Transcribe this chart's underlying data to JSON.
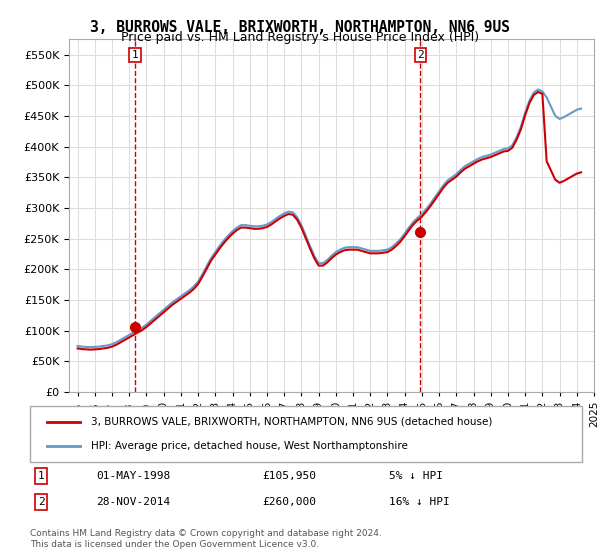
{
  "title": "3, BURROWS VALE, BRIXWORTH, NORTHAMPTON, NN6 9US",
  "subtitle": "Price paid vs. HM Land Registry's House Price Index (HPI)",
  "legend_line1": "3, BURROWS VALE, BRIXWORTH, NORTHAMPTON, NN6 9US (detached house)",
  "legend_line2": "HPI: Average price, detached house, West Northamptonshire",
  "footer": "Contains HM Land Registry data © Crown copyright and database right 2024.\nThis data is licensed under the Open Government Licence v3.0.",
  "sale1_label": "1",
  "sale1_date": "01-MAY-1998",
  "sale1_price": "£105,950",
  "sale1_hpi": "5% ↓ HPI",
  "sale2_label": "2",
  "sale2_date": "28-NOV-2014",
  "sale2_price": "£260,000",
  "sale2_hpi": "16% ↓ HPI",
  "red_color": "#cc0000",
  "blue_color": "#6699cc",
  "grid_color": "#dddddd",
  "background_color": "#ffffff",
  "ylim": [
    0,
    575000
  ],
  "yticks": [
    0,
    50000,
    100000,
    150000,
    200000,
    250000,
    300000,
    350000,
    400000,
    450000,
    500000,
    550000
  ],
  "hpi_data": {
    "years": [
      1995.0,
      1995.25,
      1995.5,
      1995.75,
      1996.0,
      1996.25,
      1996.5,
      1996.75,
      1997.0,
      1997.25,
      1997.5,
      1997.75,
      1998.0,
      1998.25,
      1998.5,
      1998.75,
      1999.0,
      1999.25,
      1999.5,
      1999.75,
      2000.0,
      2000.25,
      2000.5,
      2000.75,
      2001.0,
      2001.25,
      2001.5,
      2001.75,
      2002.0,
      2002.25,
      2002.5,
      2002.75,
      2003.0,
      2003.25,
      2003.5,
      2003.75,
      2004.0,
      2004.25,
      2004.5,
      2004.75,
      2005.0,
      2005.25,
      2005.5,
      2005.75,
      2006.0,
      2006.25,
      2006.5,
      2006.75,
      2007.0,
      2007.25,
      2007.5,
      2007.75,
      2008.0,
      2008.25,
      2008.5,
      2008.75,
      2009.0,
      2009.25,
      2009.5,
      2009.75,
      2010.0,
      2010.25,
      2010.5,
      2010.75,
      2011.0,
      2011.25,
      2011.5,
      2011.75,
      2012.0,
      2012.25,
      2012.5,
      2012.75,
      2013.0,
      2013.25,
      2013.5,
      2013.75,
      2014.0,
      2014.25,
      2014.5,
      2014.75,
      2015.0,
      2015.25,
      2015.5,
      2015.75,
      2016.0,
      2016.25,
      2016.5,
      2016.75,
      2017.0,
      2017.25,
      2017.5,
      2017.75,
      2018.0,
      2018.25,
      2018.5,
      2018.75,
      2019.0,
      2019.25,
      2019.5,
      2019.75,
      2020.0,
      2020.25,
      2020.5,
      2020.75,
      2021.0,
      2021.25,
      2021.5,
      2021.75,
      2022.0,
      2022.25,
      2022.5,
      2022.75,
      2023.0,
      2023.25,
      2023.5,
      2023.75,
      2024.0,
      2024.25
    ],
    "values": [
      75000,
      74000,
      73500,
      73000,
      73500,
      74000,
      75000,
      76000,
      78000,
      81000,
      85000,
      89000,
      93000,
      97000,
      101000,
      105000,
      110000,
      116000,
      122000,
      128000,
      134000,
      140000,
      146000,
      151000,
      156000,
      161000,
      166000,
      172000,
      180000,
      192000,
      205000,
      218000,
      228000,
      238000,
      247000,
      255000,
      262000,
      268000,
      272000,
      272000,
      271000,
      270000,
      270000,
      271000,
      273000,
      277000,
      282000,
      287000,
      291000,
      294000,
      293000,
      285000,
      272000,
      255000,
      238000,
      222000,
      210000,
      210000,
      215000,
      222000,
      228000,
      232000,
      235000,
      236000,
      236000,
      236000,
      234000,
      232000,
      230000,
      230000,
      230000,
      231000,
      232000,
      236000,
      242000,
      249000,
      258000,
      268000,
      277000,
      284000,
      290000,
      298000,
      307000,
      317000,
      327000,
      337000,
      345000,
      350000,
      355000,
      362000,
      368000,
      372000,
      376000,
      380000,
      383000,
      385000,
      387000,
      390000,
      393000,
      396000,
      397000,
      402000,
      415000,
      432000,
      455000,
      475000,
      488000,
      493000,
      490000,
      480000,
      465000,
      450000,
      445000,
      448000,
      452000,
      456000,
      460000,
      462000
    ]
  },
  "red_data": {
    "years": [
      1995.0,
      1995.25,
      1995.5,
      1995.75,
      1996.0,
      1996.25,
      1996.5,
      1996.75,
      1997.0,
      1997.25,
      1997.5,
      1997.75,
      1998.0,
      1998.25,
      1998.5,
      1998.75,
      1999.0,
      1999.25,
      1999.5,
      1999.75,
      2000.0,
      2000.25,
      2000.5,
      2000.75,
      2001.0,
      2001.25,
      2001.5,
      2001.75,
      2002.0,
      2002.25,
      2002.5,
      2002.75,
      2003.0,
      2003.25,
      2003.5,
      2003.75,
      2004.0,
      2004.25,
      2004.5,
      2004.75,
      2005.0,
      2005.25,
      2005.5,
      2005.75,
      2006.0,
      2006.25,
      2006.5,
      2006.75,
      2007.0,
      2007.25,
      2007.5,
      2007.75,
      2008.0,
      2008.25,
      2008.5,
      2008.75,
      2009.0,
      2009.25,
      2009.5,
      2009.75,
      2010.0,
      2010.25,
      2010.5,
      2010.75,
      2011.0,
      2011.25,
      2011.5,
      2011.75,
      2012.0,
      2012.25,
      2012.5,
      2012.75,
      2013.0,
      2013.25,
      2013.5,
      2013.75,
      2014.0,
      2014.25,
      2014.5,
      2014.75,
      2015.0,
      2015.25,
      2015.5,
      2015.75,
      2016.0,
      2016.25,
      2016.5,
      2016.75,
      2017.0,
      2017.25,
      2017.5,
      2017.75,
      2018.0,
      2018.25,
      2018.5,
      2018.75,
      2019.0,
      2019.25,
      2019.5,
      2019.75,
      2020.0,
      2020.25,
      2020.5,
      2020.75,
      2021.0,
      2021.25,
      2021.5,
      2021.75,
      2022.0,
      2022.25,
      2022.5,
      2022.75,
      2023.0,
      2023.25,
      2023.5,
      2023.75,
      2024.0,
      2024.25
    ],
    "values": [
      71000,
      70000,
      69500,
      69000,
      69500,
      70000,
      71000,
      72000,
      74000,
      77000,
      81000,
      85000,
      89000,
      93000,
      97000,
      101000,
      106000,
      112000,
      118000,
      124000,
      130000,
      136000,
      142000,
      147000,
      152000,
      157000,
      162000,
      168000,
      176000,
      188000,
      201000,
      214000,
      224000,
      234000,
      243000,
      251000,
      258000,
      264000,
      268000,
      268000,
      267000,
      266000,
      266000,
      267000,
      269000,
      273000,
      278000,
      283000,
      287000,
      290000,
      289000,
      281000,
      268000,
      251000,
      234000,
      218000,
      206000,
      206000,
      211000,
      218000,
      224000,
      228000,
      231000,
      232000,
      232000,
      232000,
      230000,
      228000,
      226000,
      226000,
      226000,
      227000,
      228000,
      232000,
      238000,
      245000,
      254000,
      264000,
      273000,
      280000,
      286000,
      294000,
      303000,
      313000,
      323000,
      333000,
      341000,
      346000,
      351000,
      358000,
      364000,
      368000,
      372000,
      376000,
      379000,
      381000,
      383000,
      386000,
      389000,
      392000,
      393000,
      398000,
      411000,
      428000,
      451000,
      471000,
      484000,
      489000,
      486000,
      376000,
      361000,
      346000,
      341000,
      344000,
      348000,
      352000,
      356000,
      358000
    ]
  },
  "sale1_x": 1998.33,
  "sale1_y": 105950,
  "sale2_x": 2014.92,
  "sale2_y": 260000,
  "sale1_vline_x": 1998.33,
  "sale2_vline_x": 2014.92,
  "xmin": 1994.5,
  "xmax": 2025.0
}
